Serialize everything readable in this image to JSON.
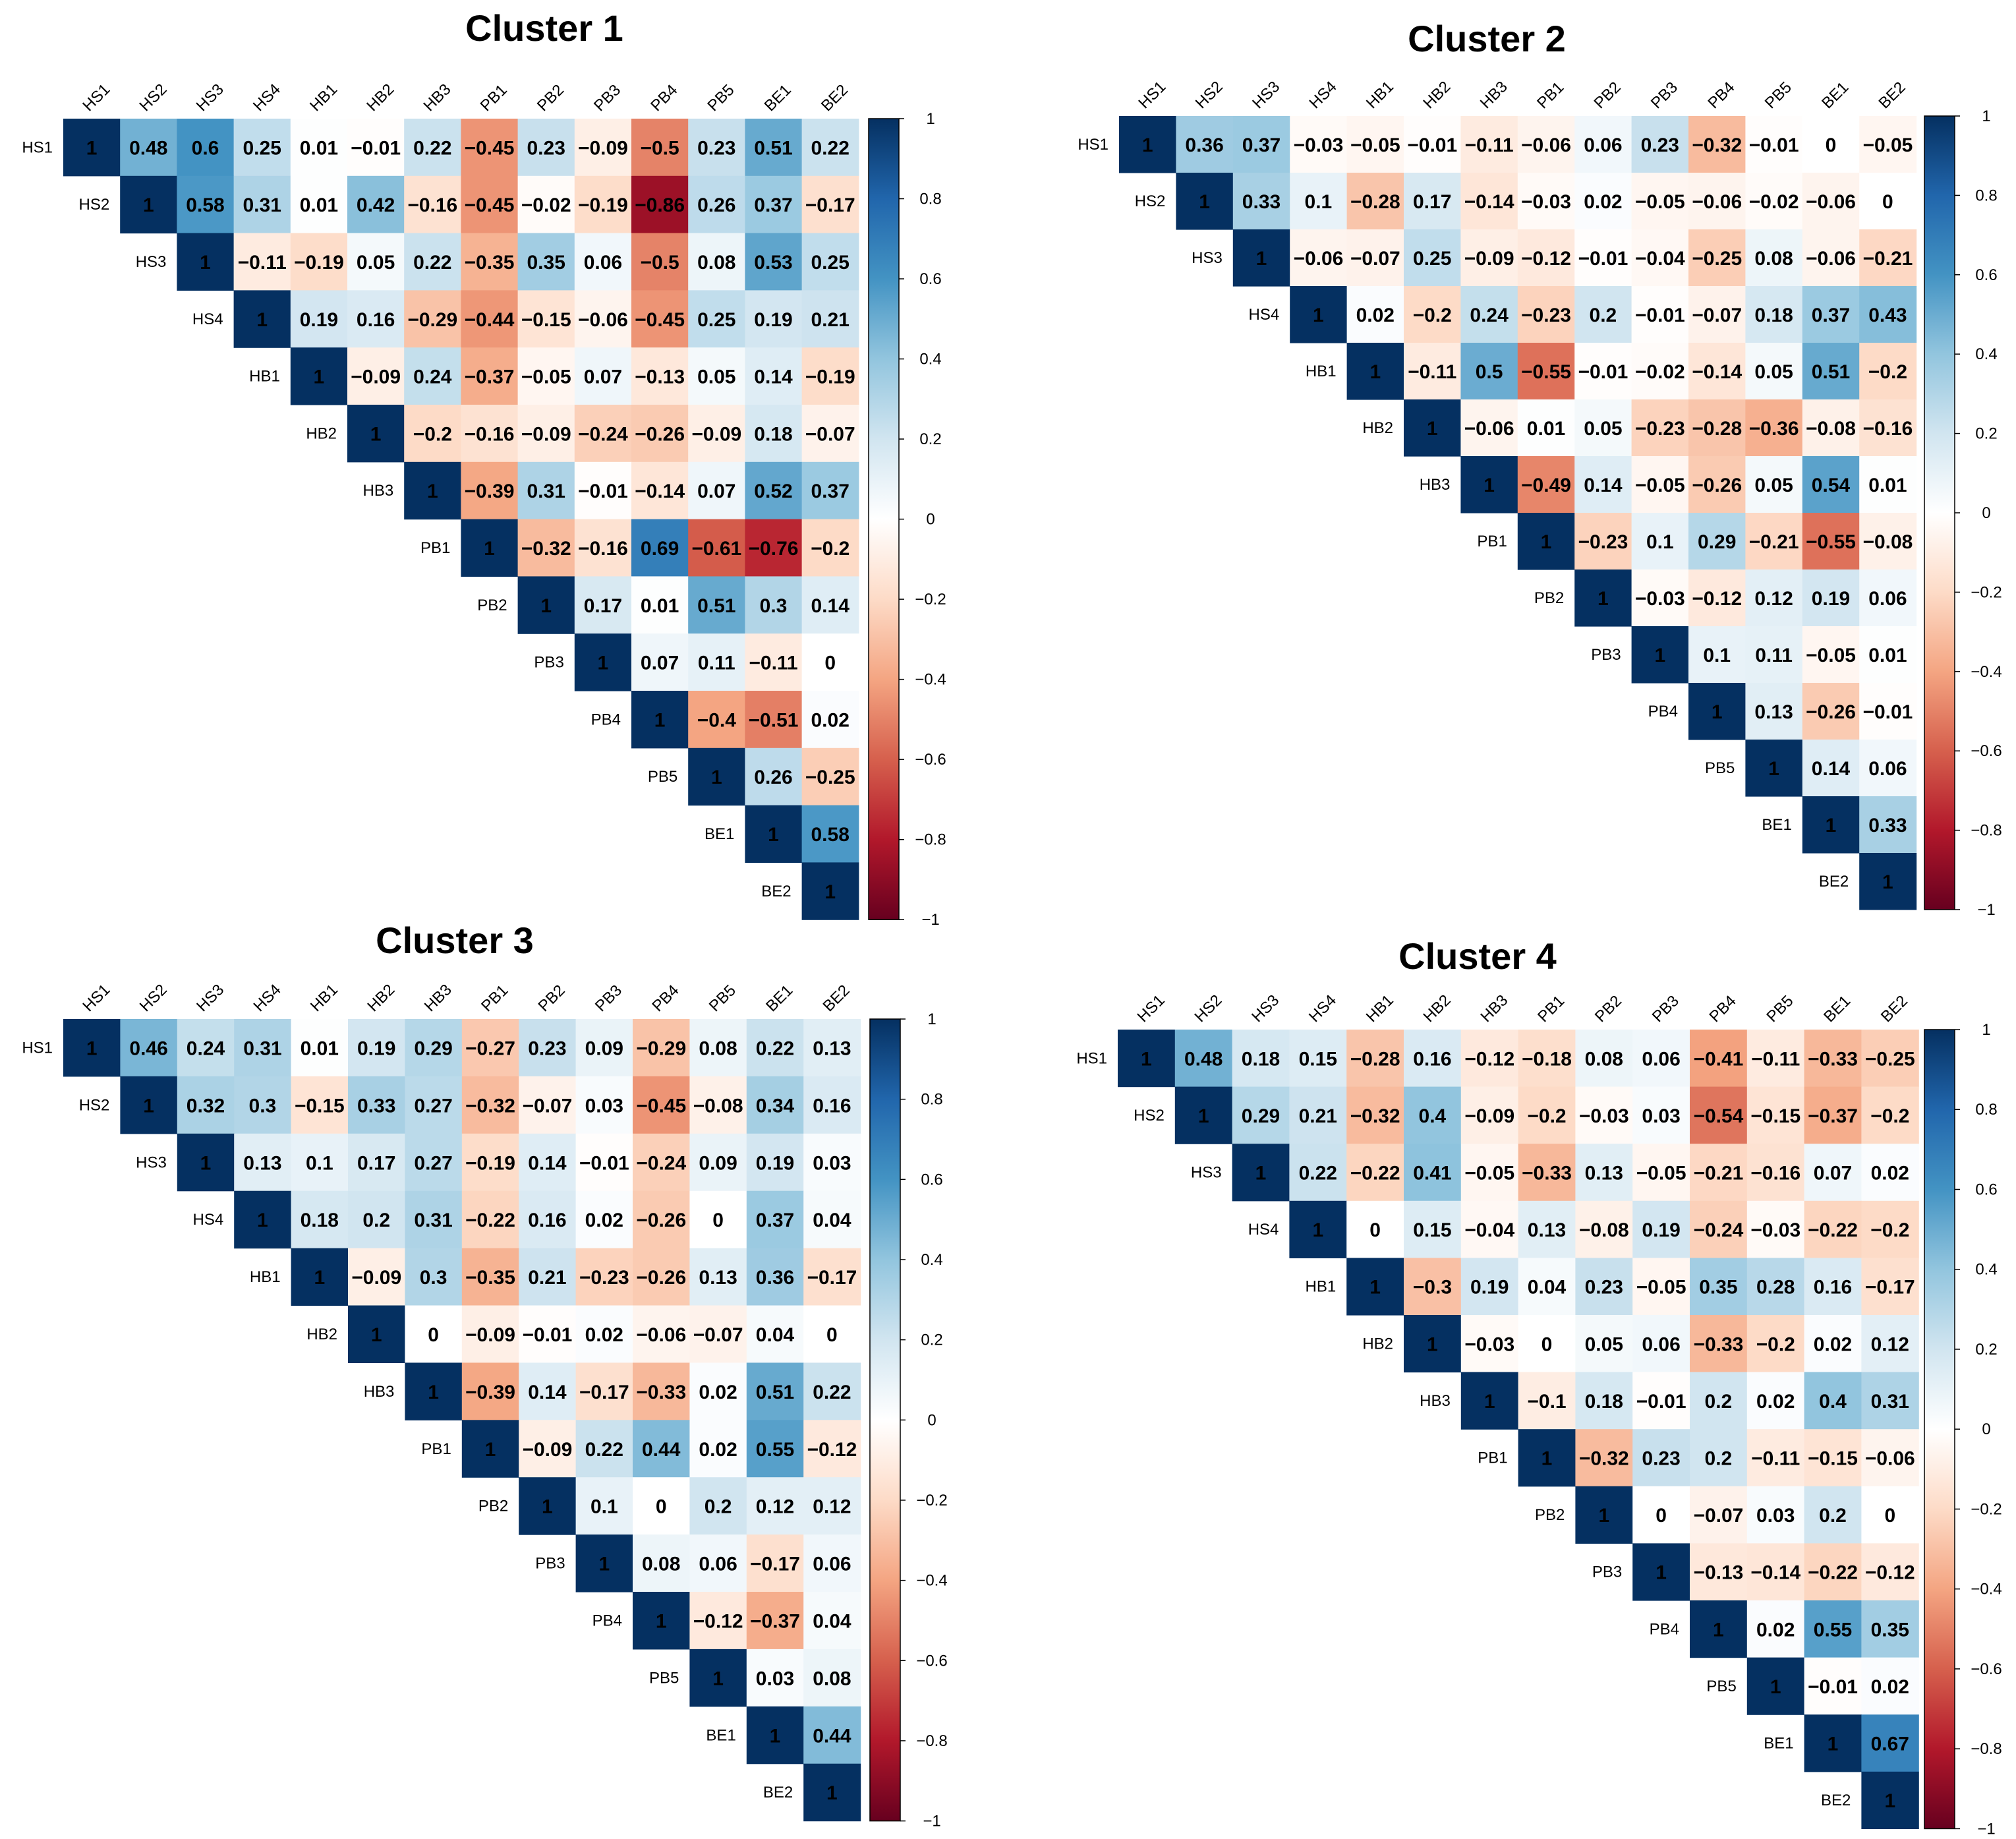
{
  "variables": [
    "HS1",
    "HS2",
    "HS3",
    "HS4",
    "HB1",
    "HB2",
    "HB3",
    "PB1",
    "PB2",
    "PB3",
    "PB4",
    "PB5",
    "BE1",
    "BE2"
  ],
  "colorbar": {
    "ticks": [
      "1",
      "0.8",
      "0.6",
      "0.4",
      "0.2",
      "0",
      "−0.2",
      "−0.4",
      "−0.6",
      "−0.8",
      "−1"
    ],
    "range": [
      -1,
      1
    ],
    "colors": {
      "neg": "#67001f",
      "mid": "#ffffff",
      "pos": "#053061"
    }
  },
  "chart_data": [
    {
      "type": "heatmap",
      "title": "Cluster 1",
      "variables": [
        "HS1",
        "HS2",
        "HS3",
        "HS4",
        "HB1",
        "HB2",
        "HB3",
        "PB1",
        "PB2",
        "PB3",
        "PB4",
        "PB5",
        "BE1",
        "BE2"
      ],
      "upper_triangle": [
        [
          1,
          0.48,
          0.6,
          0.25,
          0.01,
          -0.01,
          0.22,
          -0.45,
          0.23,
          -0.09,
          -0.5,
          0.23,
          0.51,
          0.22
        ],
        [
          1,
          0.58,
          0.31,
          0.01,
          0.42,
          -0.16,
          -0.45,
          -0.02,
          -0.19,
          -0.86,
          0.26,
          0.37,
          -0.17
        ],
        [
          1,
          -0.11,
          -0.19,
          0.05,
          0.22,
          -0.35,
          0.35,
          0.06,
          -0.5,
          0.08,
          0.53,
          0.25
        ],
        [
          1,
          0.19,
          0.16,
          -0.29,
          -0.44,
          -0.15,
          -0.06,
          -0.45,
          0.25,
          0.19,
          0.21
        ],
        [
          1,
          -0.09,
          0.24,
          -0.37,
          -0.05,
          0.07,
          -0.13,
          0.05,
          0.14,
          -0.19
        ],
        [
          1,
          -0.2,
          -0.16,
          -0.09,
          -0.24,
          -0.26,
          -0.09,
          0.18,
          -0.07
        ],
        [
          1,
          -0.39,
          0.31,
          -0.01,
          -0.14,
          0.07,
          0.52,
          0.37
        ],
        [
          1,
          -0.32,
          -0.16,
          0.69,
          -0.61,
          -0.76,
          -0.2
        ],
        [
          1,
          0.17,
          0.01,
          0.51,
          0.3,
          0.14
        ],
        [
          1,
          0.07,
          0.11,
          -0.11,
          0
        ],
        [
          1,
          -0.4,
          -0.51,
          0.02
        ],
        [
          1,
          0.26,
          -0.25
        ],
        [
          1,
          0.58
        ],
        [
          1
        ]
      ]
    },
    {
      "type": "heatmap",
      "title": "Cluster 2",
      "variables": [
        "HS1",
        "HS2",
        "HS3",
        "HS4",
        "HB1",
        "HB2",
        "HB3",
        "PB1",
        "PB2",
        "PB3",
        "PB4",
        "PB5",
        "BE1",
        "BE2"
      ],
      "upper_triangle": [
        [
          1,
          0.36,
          0.37,
          -0.03,
          -0.05,
          -0.01,
          -0.11,
          -0.06,
          0.06,
          0.23,
          -0.32,
          -0.01,
          0,
          -0.05
        ],
        [
          1,
          0.33,
          0.1,
          -0.28,
          0.17,
          -0.14,
          -0.03,
          0.02,
          -0.05,
          -0.06,
          -0.02,
          -0.06,
          0
        ],
        [
          1,
          -0.06,
          -0.07,
          0.25,
          -0.09,
          -0.12,
          -0.01,
          -0.04,
          -0.25,
          0.08,
          -0.06,
          -0.21
        ],
        [
          1,
          0.02,
          -0.2,
          0.24,
          -0.23,
          0.2,
          -0.01,
          -0.07,
          0.18,
          0.37,
          0.43
        ],
        [
          1,
          -0.11,
          0.5,
          -0.55,
          -0.01,
          -0.02,
          -0.14,
          0.05,
          0.51,
          -0.2
        ],
        [
          1,
          -0.06,
          0.01,
          0.05,
          -0.23,
          -0.28,
          -0.36,
          -0.08,
          -0.16
        ],
        [
          1,
          -0.49,
          0.14,
          -0.05,
          -0.26,
          0.05,
          0.54,
          0.01
        ],
        [
          1,
          -0.23,
          0.1,
          0.29,
          -0.21,
          -0.55,
          -0.08
        ],
        [
          1,
          -0.03,
          -0.12,
          0.12,
          0.19,
          0.06
        ],
        [
          1,
          0.1,
          0.11,
          -0.05,
          0.01
        ],
        [
          1,
          0.13,
          -0.26,
          -0.01
        ],
        [
          1,
          0.14,
          0.06
        ],
        [
          1,
          0.33
        ],
        [
          1
        ]
      ]
    },
    {
      "type": "heatmap",
      "title": "Cluster 3",
      "variables": [
        "HS1",
        "HS2",
        "HS3",
        "HS4",
        "HB1",
        "HB2",
        "HB3",
        "PB1",
        "PB2",
        "PB3",
        "PB4",
        "PB5",
        "BE1",
        "BE2"
      ],
      "upper_triangle": [
        [
          1,
          0.46,
          0.24,
          0.31,
          0.01,
          0.19,
          0.29,
          -0.27,
          0.23,
          0.09,
          -0.29,
          0.08,
          0.22,
          0.13
        ],
        [
          1,
          0.32,
          0.3,
          -0.15,
          0.33,
          0.27,
          -0.32,
          -0.07,
          0.03,
          -0.45,
          -0.08,
          0.34,
          0.16
        ],
        [
          1,
          0.13,
          0.1,
          0.17,
          0.27,
          -0.19,
          0.14,
          -0.01,
          -0.24,
          0.09,
          0.19,
          0.03
        ],
        [
          1,
          0.18,
          0.2,
          0.31,
          -0.22,
          0.16,
          0.02,
          -0.26,
          0,
          0.37,
          0.04
        ],
        [
          1,
          -0.09,
          0.3,
          -0.35,
          0.21,
          -0.23,
          -0.26,
          0.13,
          0.36,
          -0.17
        ],
        [
          1,
          0,
          -0.09,
          -0.01,
          0.02,
          -0.06,
          -0.07,
          0.04,
          0
        ],
        [
          1,
          -0.39,
          0.14,
          -0.17,
          -0.33,
          0.02,
          0.51,
          0.22
        ],
        [
          1,
          -0.09,
          0.22,
          0.44,
          0.02,
          0.55,
          -0.12
        ],
        [
          1,
          0.1,
          0,
          0.2,
          0.12,
          0.12
        ],
        [
          1,
          0.08,
          0.06,
          -0.17,
          0.06
        ],
        [
          1,
          -0.12,
          -0.37,
          0.04
        ],
        [
          1,
          0.03,
          0.08
        ],
        [
          1,
          0.44
        ],
        [
          1
        ]
      ]
    },
    {
      "type": "heatmap",
      "title": "Cluster 4",
      "variables": [
        "HS1",
        "HS2",
        "HS3",
        "HS4",
        "HB1",
        "HB2",
        "HB3",
        "PB1",
        "PB2",
        "PB3",
        "PB4",
        "PB5",
        "BE1",
        "BE2"
      ],
      "upper_triangle": [
        [
          1,
          0.48,
          0.18,
          0.15,
          -0.28,
          0.16,
          -0.12,
          -0.18,
          0.08,
          0.06,
          -0.41,
          -0.11,
          -0.33,
          -0.25
        ],
        [
          1,
          0.29,
          0.21,
          -0.32,
          0.4,
          -0.09,
          -0.2,
          -0.03,
          0.03,
          -0.54,
          -0.15,
          -0.37,
          -0.2
        ],
        [
          1,
          0.22,
          -0.22,
          0.41,
          -0.05,
          -0.33,
          0.13,
          -0.05,
          -0.21,
          -0.16,
          0.07,
          0.02
        ],
        [
          1,
          0,
          0.15,
          -0.04,
          0.13,
          -0.08,
          0.19,
          -0.24,
          -0.03,
          -0.22,
          -0.2
        ],
        [
          1,
          -0.3,
          0.19,
          0.04,
          0.23,
          -0.05,
          0.35,
          0.28,
          0.16,
          -0.17
        ],
        [
          1,
          -0.03,
          0,
          0.05,
          0.06,
          -0.33,
          -0.2,
          0.02,
          0.12
        ],
        [
          1,
          -0.1,
          0.18,
          -0.01,
          0.2,
          0.02,
          0.4,
          0.31
        ],
        [
          1,
          -0.32,
          0.23,
          0.2,
          -0.11,
          -0.15,
          -0.06
        ],
        [
          1,
          0,
          -0.07,
          0.03,
          0.2,
          0
        ],
        [
          1,
          -0.13,
          -0.14,
          -0.22,
          -0.12
        ],
        [
          1,
          0.02,
          0.55,
          0.35
        ],
        [
          1,
          -0.01,
          0.02
        ],
        [
          1,
          0.67
        ],
        [
          1
        ]
      ]
    }
  ]
}
